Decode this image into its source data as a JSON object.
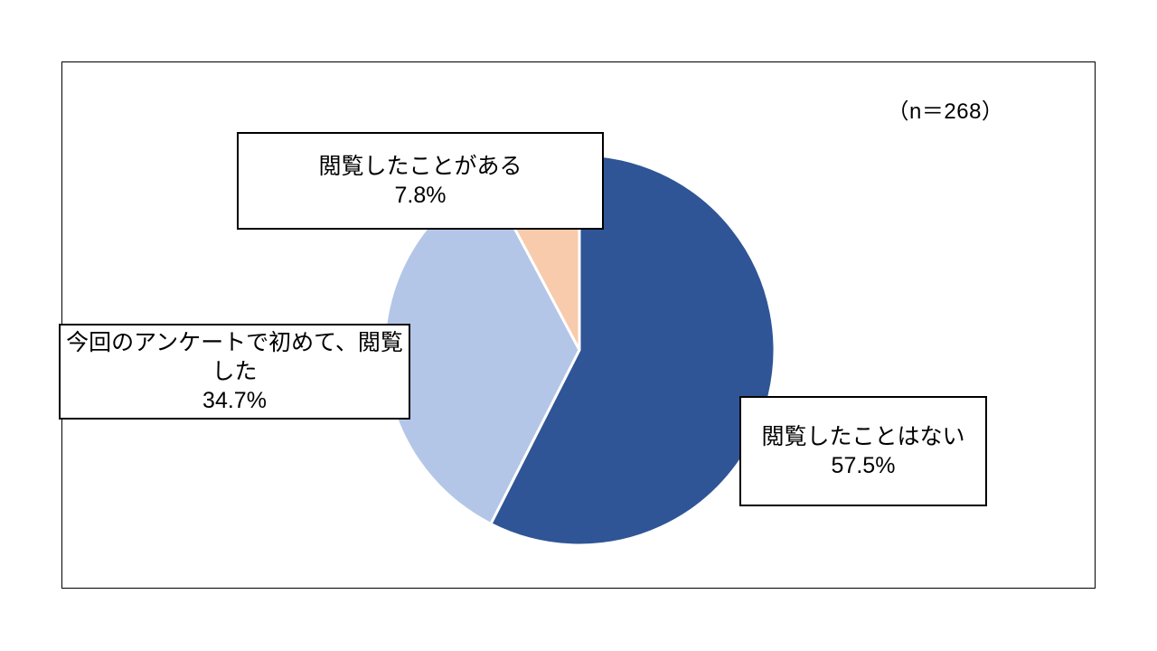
{
  "chart_data": {
    "type": "pie",
    "title": "",
    "annotation": "（n＝268）",
    "sample_size": 268,
    "unit": "%",
    "start_angle_deg": 0,
    "direction": "clockwise",
    "legend_position": "none",
    "slice_border_color": "#FFFFFF",
    "series": [
      {
        "label": "閲覧したことはない",
        "value": 57.5,
        "value_label": "57.5%",
        "color": "#2F5597"
      },
      {
        "label": "今回のアンケートで初めて、閲覧した",
        "value": 34.7,
        "value_label": "34.7%",
        "color": "#B4C6E7"
      },
      {
        "label": "閲覧したことがある",
        "value": 7.8,
        "value_label": "7.8%",
        "color": "#F8CBAD"
      }
    ]
  }
}
